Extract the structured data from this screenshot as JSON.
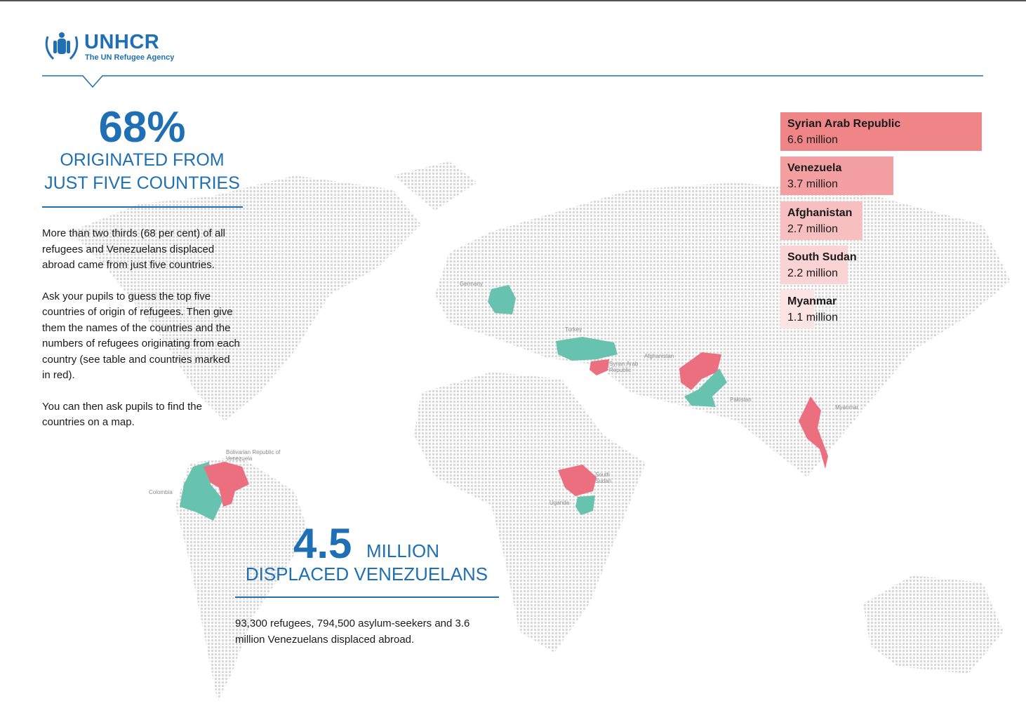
{
  "header": {
    "logo": "UNHCR",
    "tagline": "The UN Refugee Agency"
  },
  "left": {
    "stat": "68%",
    "headline": [
      "ORIGINATED FROM",
      "JUST FIVE COUNTRIES"
    ],
    "paragraphs": [
      "More than two thirds (68 per cent) of all refugees and Venezuelans displaced abroad came from just five countries.",
      "Ask your pupils to guess the top five countries of origin of refugees. Then give them the names of the countries and the numbers of refugees originating from each country (see table and countries marked in red).",
      "You can then ask pupils to find the countries on a map."
    ]
  },
  "center": {
    "stat": "4.5",
    "unit": "MILLION",
    "headline": "DISPLACED VENEZUELANS",
    "paragraph": "93,300 refugees, 794,500 asylum-seekers and 3.6 million Venezuelans displaced abroad."
  },
  "map_labels": [
    "Germany",
    "Turkey",
    "Syrian Arab Republic",
    "Afghanistan",
    "Pakistan",
    "Myanmar",
    "South Sudan",
    "Uganda",
    "Colombia",
    "Bolivarian Republic of Venezuela"
  ],
  "chart_data": {
    "type": "bar",
    "orientation": "horizontal",
    "categories": [
      "Syrian Arab Republic",
      "Venezuela",
      "Afghanistan",
      "South Sudan",
      "Myanmar"
    ],
    "values": [
      6.6,
      3.7,
      2.7,
      2.2,
      1.1
    ],
    "value_labels": [
      "6.6 million",
      "3.7 million",
      "2.7 million",
      "2.2 million",
      "1.1 million"
    ],
    "colors": [
      "#f08588",
      "#f4a0a3",
      "#f8bfc0",
      "#fad3d4",
      "#fce4e4"
    ]
  }
}
